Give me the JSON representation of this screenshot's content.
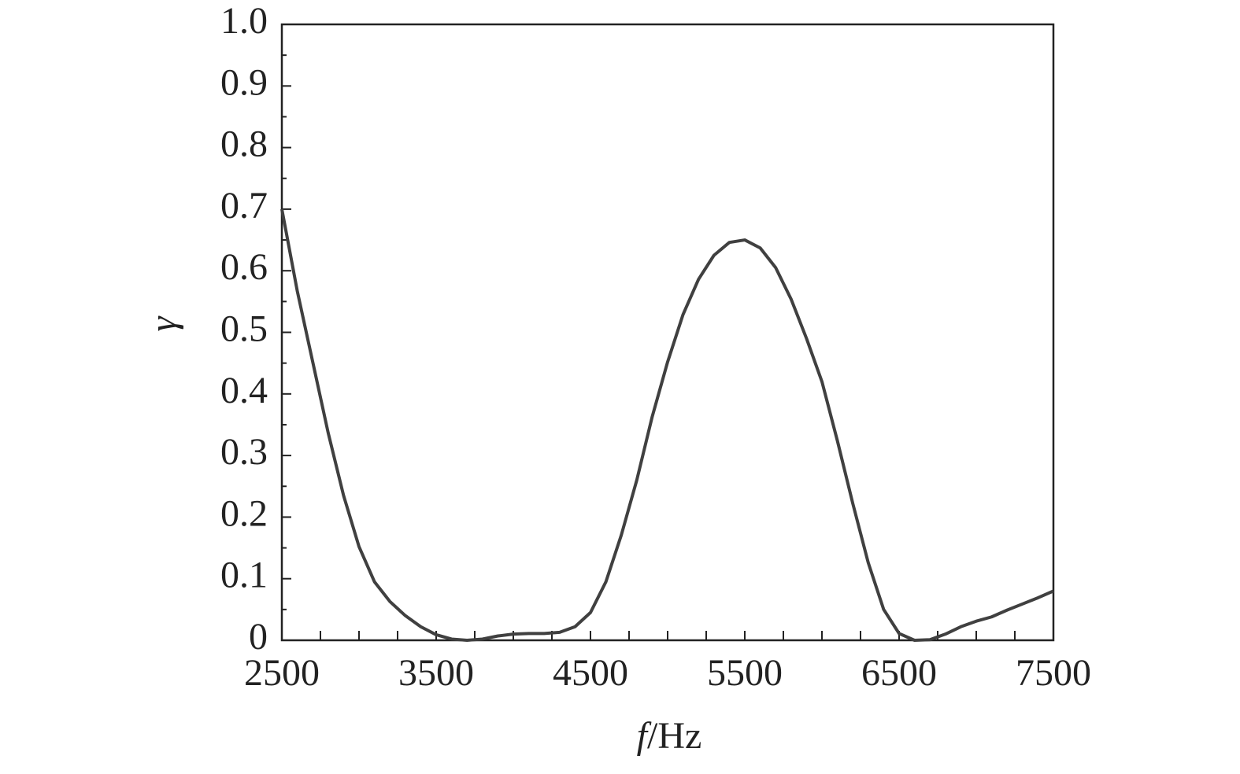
{
  "chart_data": {
    "type": "line",
    "xlabel": [
      "f",
      "/Hz"
    ],
    "ylabel": "γ",
    "x": [
      2500,
      2600,
      2700,
      2800,
      2900,
      3000,
      3100,
      3200,
      3300,
      3400,
      3500,
      3600,
      3700,
      3800,
      3900,
      4000,
      4100,
      4200,
      4300,
      4400,
      4500,
      4600,
      4700,
      4800,
      4900,
      5000,
      5100,
      5200,
      5300,
      5400,
      5500,
      5600,
      5700,
      5800,
      5900,
      6000,
      6100,
      6200,
      6300,
      6400,
      6500,
      6600,
      6700,
      6800,
      6900,
      7000,
      7100,
      7200,
      7300,
      7400,
      7500
    ],
    "series": [
      {
        "color": "#404040",
        "values": [
          0.7,
          0.567,
          0.452,
          0.337,
          0.235,
          0.152,
          0.095,
          0.063,
          0.04,
          0.022,
          0.009,
          0.002,
          0.0,
          0.002,
          0.007,
          0.01,
          0.011,
          0.011,
          0.013,
          0.022,
          0.045,
          0.095,
          0.171,
          0.26,
          0.363,
          0.452,
          0.529,
          0.586,
          0.625,
          0.646,
          0.65,
          0.637,
          0.605,
          0.554,
          0.49,
          0.42,
          0.324,
          0.222,
          0.126,
          0.05,
          0.011,
          0.0,
          0.001,
          0.01,
          0.022,
          0.031,
          0.038,
          0.049,
          0.059,
          0.069,
          0.08
        ]
      }
    ],
    "xlim": [
      2500,
      7500
    ],
    "ylim": [
      0,
      1
    ],
    "xticks": [
      2500,
      3500,
      4500,
      5500,
      6500,
      7500
    ],
    "xminorticks": [
      2750,
      3000,
      3250,
      3750,
      4000,
      4250,
      4750,
      5000,
      5250,
      5750,
      6000,
      6250,
      6750,
      7000,
      7250
    ],
    "yticks": [
      0,
      0.1,
      0.2,
      0.3,
      0.4,
      0.5,
      0.6,
      0.7,
      0.8,
      0.9,
      {
        "value": 1,
        "label": "1.0"
      }
    ],
    "yminorticks": [
      0.05,
      0.15,
      0.25,
      0.35,
      0.45,
      0.55,
      0.65,
      0.75,
      0.85,
      0.95
    ]
  }
}
